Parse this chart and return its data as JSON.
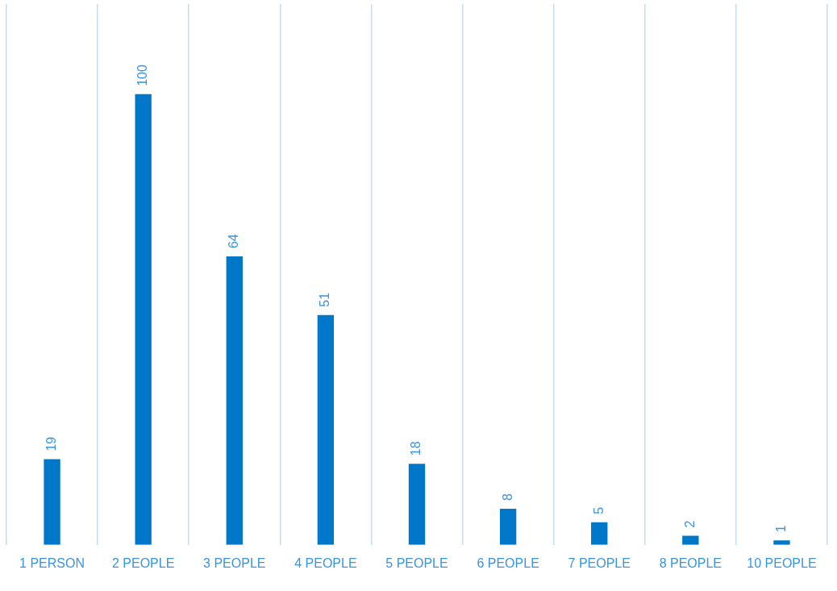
{
  "chart_data": {
    "type": "bar",
    "categories": [
      "1 PERSON",
      "2 PEOPLE",
      "3 PEOPLE",
      "4 PEOPLE",
      "5 PEOPLE",
      "6 PEOPLE",
      "7 PEOPLE",
      "8 PEOPLE",
      "10 PEOPLE"
    ],
    "values": [
      19,
      100,
      64,
      51,
      18,
      8,
      5,
      2,
      1
    ],
    "color": "#0077c8",
    "data_labels": true,
    "grid": "x",
    "legend": false
  }
}
